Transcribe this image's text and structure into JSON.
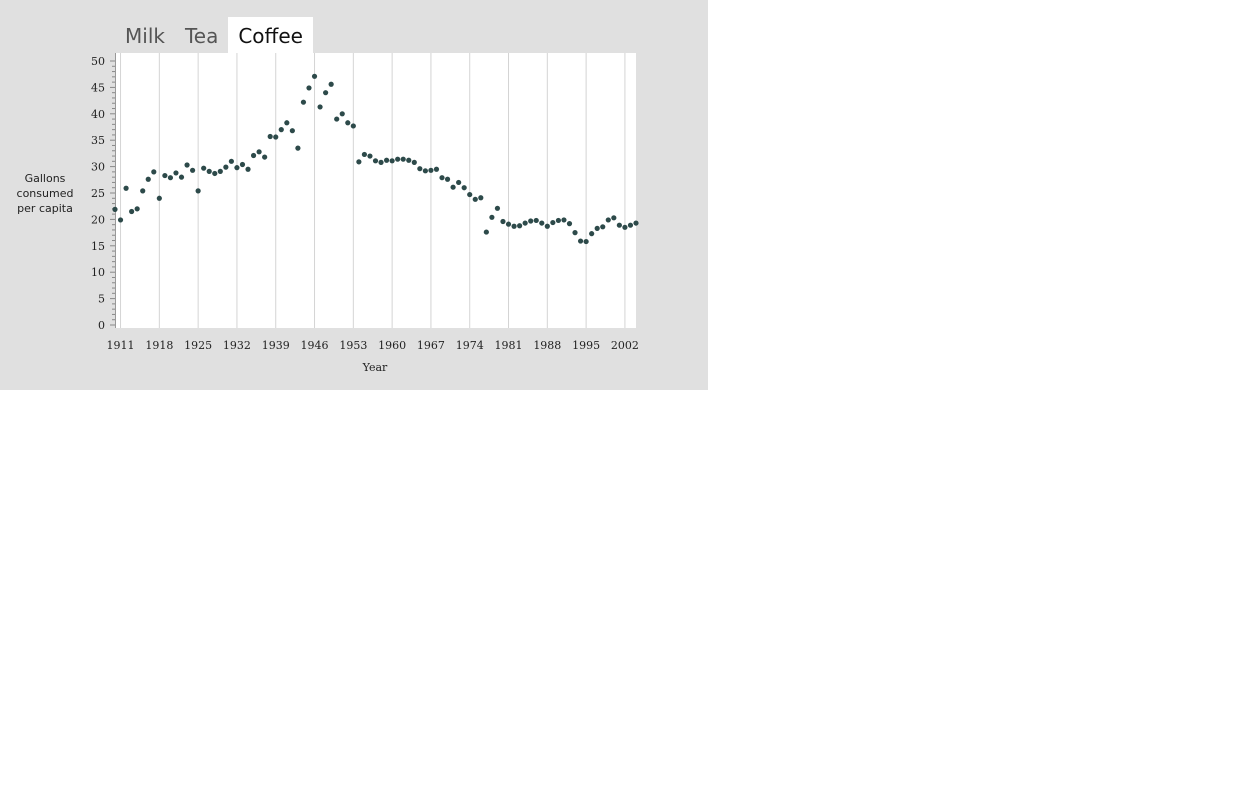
{
  "tabs": [
    {
      "label": "Milk",
      "active": false
    },
    {
      "label": "Tea",
      "active": false
    },
    {
      "label": "Coffee",
      "active": true
    }
  ],
  "colors": {
    "panel_background": "#e0e0e0",
    "plot_background": "#ffffff",
    "point": "#2d4a4a",
    "gridline": "#d4d4d4"
  },
  "chart_data": {
    "type": "scatter",
    "title": "",
    "xlabel": "Year",
    "ylabel": "Gallons consumed per capita",
    "xlim": [
      1910,
      2004
    ],
    "ylim": [
      0,
      50
    ],
    "grid": "vertical",
    "x_ticks": [
      1911,
      1918,
      1925,
      1932,
      1939,
      1946,
      1953,
      1960,
      1967,
      1974,
      1981,
      1988,
      1995,
      2002
    ],
    "y_ticks": [
      0,
      5,
      10,
      15,
      20,
      25,
      30,
      35,
      40,
      45,
      50
    ],
    "series": [
      {
        "x": [
          1910,
          1911,
          1912,
          1913,
          1914,
          1915,
          1916,
          1917,
          1918,
          1919,
          1920,
          1921,
          1922,
          1923,
          1924,
          1925,
          1926,
          1927,
          1928,
          1929,
          1930,
          1931,
          1932,
          1933,
          1934,
          1935,
          1936,
          1937,
          1938,
          1939,
          1940,
          1941,
          1942,
          1943,
          1944,
          1945,
          1946,
          1947,
          1948,
          1949,
          1950,
          1951,
          1952,
          1953,
          1954,
          1955,
          1956,
          1957,
          1958,
          1959,
          1960,
          1961,
          1962,
          1963,
          1964,
          1965,
          1966,
          1967,
          1968,
          1969,
          1970,
          1971,
          1972,
          1973,
          1974,
          1975,
          1976,
          1977,
          1978,
          1979,
          1980,
          1981,
          1982,
          1983,
          1984,
          1985,
          1986,
          1987,
          1988,
          1989,
          1990,
          1991,
          1992,
          1993,
          1994,
          1995,
          1996,
          1997,
          1998,
          1999,
          2000,
          2001,
          2002,
          2003,
          2004
        ],
        "y": [
          21.9,
          19.9,
          25.9,
          21.5,
          22.0,
          25.4,
          27.6,
          29.0,
          24.0,
          28.3,
          27.9,
          28.8,
          28.0,
          30.3,
          29.3,
          25.4,
          29.7,
          29.1,
          28.7,
          29.1,
          29.9,
          31.0,
          29.8,
          30.4,
          29.5,
          32.1,
          32.8,
          31.8,
          35.7,
          35.6,
          37.0,
          38.3,
          36.8,
          33.5,
          42.2,
          44.9,
          47.1,
          41.3,
          44.0,
          45.6,
          39.0,
          40.0,
          38.3,
          37.7,
          30.9,
          32.3,
          32.0,
          31.1,
          30.8,
          31.2,
          31.1,
          31.4,
          31.4,
          31.2,
          30.8,
          29.6,
          29.2,
          29.3,
          29.5,
          27.9,
          27.6,
          26.1,
          27.0,
          26.0,
          24.7,
          23.8,
          24.1,
          17.6,
          20.4,
          22.1,
          19.6,
          19.1,
          18.7,
          18.8,
          19.3,
          19.7,
          19.8,
          19.3,
          18.7,
          19.4,
          19.8,
          19.9,
          19.2,
          17.5,
          15.9,
          15.8,
          17.3,
          18.3,
          18.6,
          19.9,
          20.3,
          18.9,
          18.5,
          18.9,
          19.3
        ]
      }
    ]
  }
}
